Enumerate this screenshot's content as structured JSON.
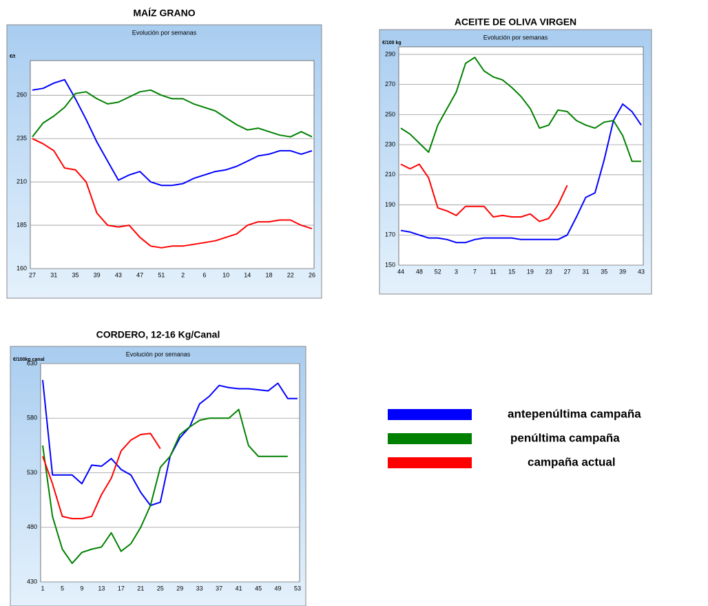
{
  "chart_data": [
    {
      "type": "line",
      "title": "MAÍZ GRANO",
      "subtitle": "Evolución por semanas",
      "ylabel": "€/t",
      "categories": [
        "27",
        null,
        "31",
        null,
        "35",
        null,
        "39",
        null,
        "43",
        null,
        "47",
        null,
        "51",
        null,
        "2",
        null,
        "6",
        null,
        "10",
        null,
        "14",
        null,
        "18",
        null,
        "22",
        null,
        "26"
      ],
      "series": [
        {
          "name": "antepenúltima campaña",
          "color": "#0000ff",
          "values": [
            263,
            264,
            267,
            269,
            258,
            246,
            233,
            222,
            211,
            214,
            216,
            210,
            208,
            208,
            209,
            212,
            214,
            216,
            217,
            219,
            222,
            225,
            226,
            228,
            228,
            226,
            228
          ]
        },
        {
          "name": "penúltima campaña",
          "color": "#008000",
          "values": [
            236,
            244,
            248,
            253,
            261,
            262,
            258,
            255,
            256,
            259,
            262,
            263,
            260,
            258,
            258,
            255,
            253,
            251,
            247,
            243,
            240,
            241,
            239,
            237,
            236,
            239,
            236
          ]
        },
        {
          "name": "campaña actual",
          "color": "#ff0000",
          "values": [
            235,
            232,
            228,
            218,
            217,
            210,
            192,
            185,
            184,
            185,
            178,
            173,
            172,
            173,
            173,
            174,
            175,
            176,
            178,
            180,
            185,
            187,
            187,
            188,
            188,
            185,
            183
          ]
        }
      ],
      "ylim": [
        160,
        280
      ],
      "yticks": [
        160,
        185,
        210,
        235,
        260
      ],
      "grid": true
    },
    {
      "type": "line",
      "title": "ACEITE DE OLIVA VIRGEN",
      "subtitle": "Evolución por semanas",
      "ylabel": "€/100 kg",
      "categories": [
        "44",
        null,
        "48",
        null,
        "52",
        null,
        "3",
        null,
        "7",
        null,
        "11",
        null,
        "15",
        null,
        "19",
        null,
        "23",
        null,
        "27",
        null,
        "31",
        null,
        "35",
        null,
        "39",
        null,
        "43"
      ],
      "series": [
        {
          "color": "#0000ff",
          "values": [
            173,
            172,
            170,
            168,
            168,
            167,
            165,
            165,
            167,
            168,
            168,
            168,
            168,
            167,
            167,
            167,
            167,
            167,
            170,
            182,
            195,
            198,
            220,
            246,
            257,
            252,
            243
          ]
        },
        {
          "color": "#008000",
          "values": [
            241,
            237,
            231,
            225,
            243,
            254,
            265,
            284,
            288,
            279,
            275,
            273,
            268,
            262,
            254,
            241,
            243,
            253,
            252,
            246,
            243,
            241,
            245,
            246,
            236,
            219,
            219
          ]
        },
        {
          "color": "#ff0000",
          "values": [
            217,
            214,
            217,
            208,
            188,
            186,
            183,
            189,
            189,
            189,
            182,
            183,
            182,
            182,
            184,
            179,
            181,
            190,
            203,
            null,
            null,
            null,
            null,
            null,
            null,
            null,
            null
          ]
        }
      ],
      "ylim": [
        150,
        295
      ],
      "yticks": [
        150,
        170,
        190,
        210,
        230,
        250,
        270,
        290
      ],
      "grid": true
    },
    {
      "type": "line",
      "title": "CORDERO, 12-16 Kg/Canal",
      "subtitle": "Evolución por semanas",
      "ylabel": "€/100kg canal",
      "categories": [
        "1",
        null,
        "5",
        null,
        "9",
        null,
        "13",
        null,
        "17",
        null,
        "21",
        null,
        "25",
        null,
        "29",
        null,
        "33",
        null,
        "37",
        null,
        "41",
        null,
        "45",
        null,
        "49",
        null,
        "53"
      ],
      "series": [
        {
          "color": "#0000ff",
          "values": [
            615,
            528,
            528,
            528,
            520,
            537,
            536,
            543,
            533,
            528,
            512,
            500,
            503,
            545,
            562,
            572,
            593,
            600,
            610,
            608,
            607,
            607,
            606,
            605,
            612,
            598,
            598
          ]
        },
        {
          "color": "#008000",
          "values": [
            555,
            490,
            460,
            447,
            457,
            460,
            462,
            475,
            458,
            465,
            480,
            500,
            535,
            545,
            565,
            572,
            578,
            580,
            580,
            580,
            588,
            555,
            545,
            545,
            545,
            545,
            null
          ]
        },
        {
          "color": "#ff0000",
          "values": [
            545,
            520,
            490,
            488,
            488,
            490,
            510,
            525,
            550,
            560,
            565,
            566,
            552,
            null,
            null,
            null,
            null,
            null,
            null,
            null,
            null,
            null,
            null,
            null,
            null,
            null,
            null
          ]
        }
      ],
      "ylim": [
        430,
        630
      ],
      "yticks": [
        430,
        480,
        530,
        580,
        630
      ],
      "grid": true
    }
  ]
}
